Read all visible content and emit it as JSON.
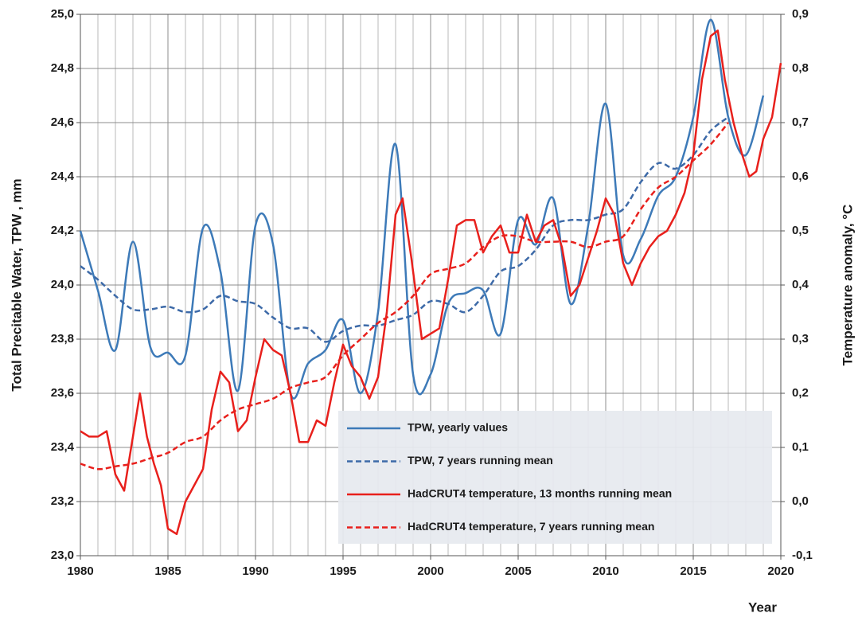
{
  "chart_data": {
    "type": "line",
    "xlabel": "Year",
    "ylabel": "Total Precitable Water, TPW , mm",
    "y2label": "Temperature anomaly, °C",
    "xlim": [
      1980,
      2020
    ],
    "xticks": [
      1980,
      1985,
      1990,
      1995,
      2000,
      2005,
      2010,
      2015,
      2020
    ],
    "xminorticks": [
      1981,
      1982,
      1983,
      1984,
      1986,
      1987,
      1988,
      1989,
      1991,
      1992,
      1993,
      1994,
      1996,
      1997,
      1998,
      1999,
      2001,
      2002,
      2003,
      2004,
      2006,
      2007,
      2008,
      2009,
      2011,
      2012,
      2013,
      2014,
      2016,
      2017,
      2018,
      2019
    ],
    "ylim": [
      23,
      25
    ],
    "yticks": [
      {
        "value": 23,
        "label": "23,0"
      },
      {
        "value": 23.2,
        "label": "23,2"
      },
      {
        "value": 23.4,
        "label": "23,4"
      },
      {
        "value": 23.6,
        "label": "23,6"
      },
      {
        "value": 23.8,
        "label": "23,8"
      },
      {
        "value": 24,
        "label": "24,0"
      },
      {
        "value": 24.2,
        "label": "24,2"
      },
      {
        "value": 24.4,
        "label": "24,4"
      },
      {
        "value": 24.6,
        "label": "24,6"
      },
      {
        "value": 24.8,
        "label": "24,8"
      },
      {
        "value": 25,
        "label": "25,0"
      }
    ],
    "y2lim": [
      -0.1,
      0.9
    ],
    "y2ticks": [
      {
        "value": -0.1,
        "label": "-0,1"
      },
      {
        "value": 0,
        "label": "0,0"
      },
      {
        "value": 0.1,
        "label": "0,1"
      },
      {
        "value": 0.2,
        "label": "0,2"
      },
      {
        "value": 0.3,
        "label": "0,3"
      },
      {
        "value": 0.4,
        "label": "0,4"
      },
      {
        "value": 0.5,
        "label": "0,5"
      },
      {
        "value": 0.6,
        "label": "0,6"
      },
      {
        "value": 0.7,
        "label": "0,7"
      },
      {
        "value": 0.8,
        "label": "0,8"
      },
      {
        "value": 0.9,
        "label": "0,9"
      }
    ],
    "grid": true,
    "legend": "lower right",
    "series": [
      {
        "name": "TPW, yearly values",
        "color": "#3d7ab8",
        "style": "solid",
        "smooth": true,
        "x": [
          1980,
          1981,
          1982,
          1983,
          1984,
          1985,
          1986,
          1987,
          1988,
          1989,
          1990,
          1991,
          1992,
          1993,
          1994,
          1995,
          1996,
          1997,
          1998,
          1999,
          2000,
          2001,
          2002,
          2003,
          2004,
          2005,
          2006,
          2007,
          2008,
          2009,
          2010,
          2011,
          2012,
          2013,
          2014,
          2015,
          2016,
          2017,
          2018,
          2019
        ],
        "values": [
          24.2,
          23.98,
          23.76,
          24.16,
          23.77,
          23.75,
          23.74,
          24.21,
          24.05,
          23.61,
          24.22,
          24.15,
          23.6,
          23.71,
          23.76,
          23.87,
          23.6,
          23.9,
          24.52,
          23.67,
          23.67,
          23.93,
          23.97,
          23.98,
          23.82,
          24.24,
          24.15,
          24.32,
          23.93,
          24.22,
          24.67,
          24.11,
          24.17,
          24.33,
          24.4,
          24.62,
          24.98,
          24.62,
          24.48,
          24.7
        ]
      },
      {
        "name": "TPW, 7 years running mean",
        "color": "#3d6aa8",
        "style": "dashed",
        "smooth": true,
        "x": [
          1980,
          1981,
          1982,
          1983,
          1984,
          1985,
          1986,
          1987,
          1988,
          1989,
          1990,
          1991,
          1992,
          1993,
          1994,
          1995,
          1996,
          1997,
          1998,
          1999,
          2000,
          2001,
          2002,
          2003,
          2004,
          2005,
          2006,
          2007,
          2008,
          2009,
          2010,
          2011,
          2012,
          2013,
          2014,
          2015,
          2016,
          2017
        ],
        "values": [
          24.07,
          24.02,
          23.96,
          23.91,
          23.91,
          23.92,
          23.9,
          23.91,
          23.96,
          23.94,
          23.93,
          23.88,
          23.84,
          23.84,
          23.79,
          23.83,
          23.85,
          23.85,
          23.87,
          23.89,
          23.94,
          23.93,
          23.9,
          23.96,
          24.05,
          24.07,
          24.13,
          24.22,
          24.24,
          24.24,
          24.26,
          24.28,
          24.38,
          24.45,
          24.43,
          24.48,
          24.57,
          24.62
        ]
      },
      {
        "name": "HadCRUT4 temperature, 13 months running mean",
        "color": "#e8201c",
        "style": "solid",
        "axis": "y2",
        "smooth": false,
        "x": [
          1980,
          1980.5,
          1981,
          1981.5,
          1982,
          1982.5,
          1983,
          1983.4,
          1983.8,
          1984.2,
          1984.6,
          1985,
          1985.5,
          1986,
          1986.5,
          1987,
          1987.5,
          1988,
          1988.5,
          1989,
          1989.5,
          1990,
          1990.5,
          1991,
          1991.5,
          1992,
          1992.5,
          1993,
          1993.5,
          1994,
          1994.5,
          1995,
          1995.5,
          1996,
          1996.5,
          1997,
          1997.5,
          1998,
          1998.4,
          1998.9,
          1999.5,
          2000,
          2000.5,
          2001,
          2001.5,
          2002,
          2002.5,
          2003,
          2003.5,
          2004,
          2004.5,
          2005,
          2005.5,
          2006,
          2006.5,
          2007,
          2007.5,
          2008,
          2008.5,
          2009,
          2009.5,
          2010,
          2010.5,
          2011,
          2011.5,
          2012,
          2012.5,
          2013,
          2013.5,
          2014,
          2014.5,
          2015,
          2015.5,
          2016,
          2016.4,
          2016.8,
          2017.3,
          2017.8,
          2018.2,
          2018.6,
          2019,
          2019.5,
          2020
        ],
        "values": [
          0.13,
          0.12,
          0.12,
          0.13,
          0.05,
          0.02,
          0.12,
          0.2,
          0.12,
          0.07,
          0.03,
          -0.05,
          -0.06,
          0.0,
          0.03,
          0.06,
          0.17,
          0.24,
          0.22,
          0.13,
          0.15,
          0.23,
          0.3,
          0.28,
          0.27,
          0.2,
          0.11,
          0.11,
          0.15,
          0.14,
          0.22,
          0.29,
          0.25,
          0.23,
          0.19,
          0.23,
          0.35,
          0.53,
          0.56,
          0.45,
          0.3,
          0.31,
          0.32,
          0.41,
          0.51,
          0.52,
          0.52,
          0.46,
          0.49,
          0.51,
          0.46,
          0.46,
          0.53,
          0.48,
          0.51,
          0.52,
          0.47,
          0.38,
          0.4,
          0.45,
          0.5,
          0.56,
          0.53,
          0.44,
          0.4,
          0.44,
          0.47,
          0.49,
          0.5,
          0.53,
          0.57,
          0.64,
          0.78,
          0.86,
          0.87,
          0.78,
          0.7,
          0.64,
          0.6,
          0.61,
          0.67,
          0.71,
          0.81
        ]
      },
      {
        "name": "HadCRUT4 temperature, 7 years running mean",
        "color": "#e8201c",
        "style": "dashed",
        "axis": "y2",
        "smooth": true,
        "x": [
          1980,
          1981,
          1982,
          1983,
          1984,
          1985,
          1986,
          1987,
          1988,
          1989,
          1990,
          1991,
          1992,
          1993,
          1994,
          1995,
          1996,
          1997,
          1998,
          1999,
          2000,
          2001,
          2002,
          2003,
          2004,
          2005,
          2006,
          2007,
          2008,
          2009,
          2010,
          2011,
          2012,
          2013,
          2014,
          2015,
          2016,
          2017
        ],
        "values": [
          0.07,
          0.06,
          0.065,
          0.07,
          0.08,
          0.09,
          0.11,
          0.12,
          0.15,
          0.17,
          0.18,
          0.19,
          0.21,
          0.22,
          0.23,
          0.27,
          0.3,
          0.33,
          0.35,
          0.38,
          0.42,
          0.43,
          0.44,
          0.47,
          0.49,
          0.49,
          0.48,
          0.48,
          0.48,
          0.47,
          0.48,
          0.49,
          0.54,
          0.58,
          0.6,
          0.63,
          0.66,
          0.7
        ]
      }
    ]
  }
}
